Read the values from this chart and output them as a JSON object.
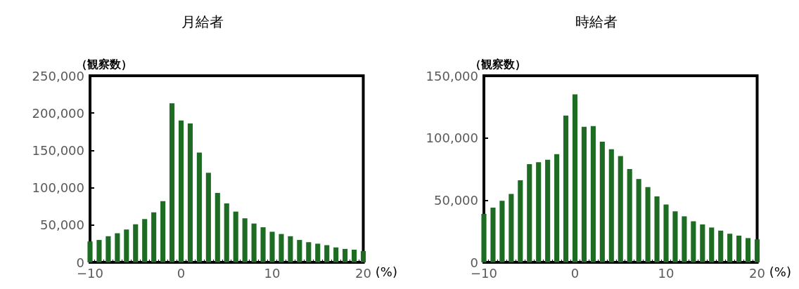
{
  "chart_data": [
    {
      "type": "bar",
      "title": "月給者",
      "ylabel": "（観察数）",
      "xlabel": "(%)",
      "color": "#1e6b23",
      "x": [
        -10,
        -9,
        -8,
        -7,
        -6,
        -5,
        -4,
        -3,
        -2,
        -1,
        0,
        1,
        2,
        3,
        4,
        5,
        6,
        7,
        8,
        9,
        10,
        11,
        12,
        13,
        14,
        15,
        16,
        17,
        18,
        19,
        20
      ],
      "values": [
        28000,
        30000,
        35000,
        39000,
        44000,
        51000,
        58000,
        67000,
        82000,
        213000,
        190000,
        186000,
        147000,
        120000,
        93000,
        79000,
        68000,
        59000,
        52000,
        47000,
        41000,
        38000,
        35000,
        30000,
        27000,
        25000,
        23000,
        20000,
        18000,
        17000,
        15000
      ],
      "xlim": [
        -10,
        20
      ],
      "xticks": [
        {
          "value": -10,
          "label": "−10"
        },
        0,
        10,
        20
      ],
      "ylim": [
        0,
        250000
      ],
      "yticks": [
        0,
        {
          "value": 50000,
          "label": "50,000"
        },
        {
          "value": 100000,
          "label": "100,000"
        },
        {
          "value": 150000,
          "label": "150,000"
        },
        {
          "value": 200000,
          "label": "200,000"
        },
        {
          "value": 250000,
          "label": "250,000"
        }
      ]
    },
    {
      "type": "bar",
      "title": "時給者",
      "ylabel": "（観察数）",
      "xlabel": "(%)",
      "color": "#1e6b23",
      "x": [
        -10,
        -9,
        -8,
        -7,
        -6,
        -5,
        -4,
        -3,
        -2,
        -1,
        0,
        1,
        2,
        3,
        4,
        5,
        6,
        7,
        8,
        9,
        10,
        11,
        12,
        13,
        14,
        15,
        16,
        17,
        18,
        19,
        20
      ],
      "values": [
        39000,
        44000,
        49500,
        55000,
        66000,
        79000,
        80500,
        82500,
        87000,
        118000,
        135000,
        109000,
        109500,
        97000,
        91000,
        85500,
        75000,
        67000,
        60500,
        53000,
        46500,
        41000,
        37000,
        33000,
        30500,
        28000,
        25500,
        23000,
        21500,
        19500,
        18500
      ],
      "xlim": [
        -10,
        20
      ],
      "xticks": [
        {
          "value": -10,
          "label": "−10"
        },
        0,
        10,
        20
      ],
      "ylim": [
        0,
        150000
      ],
      "yticks": [
        0,
        {
          "value": 50000,
          "label": "50,000"
        },
        {
          "value": 100000,
          "label": "100,000"
        },
        {
          "value": 150000,
          "label": "150,000"
        }
      ]
    }
  ]
}
